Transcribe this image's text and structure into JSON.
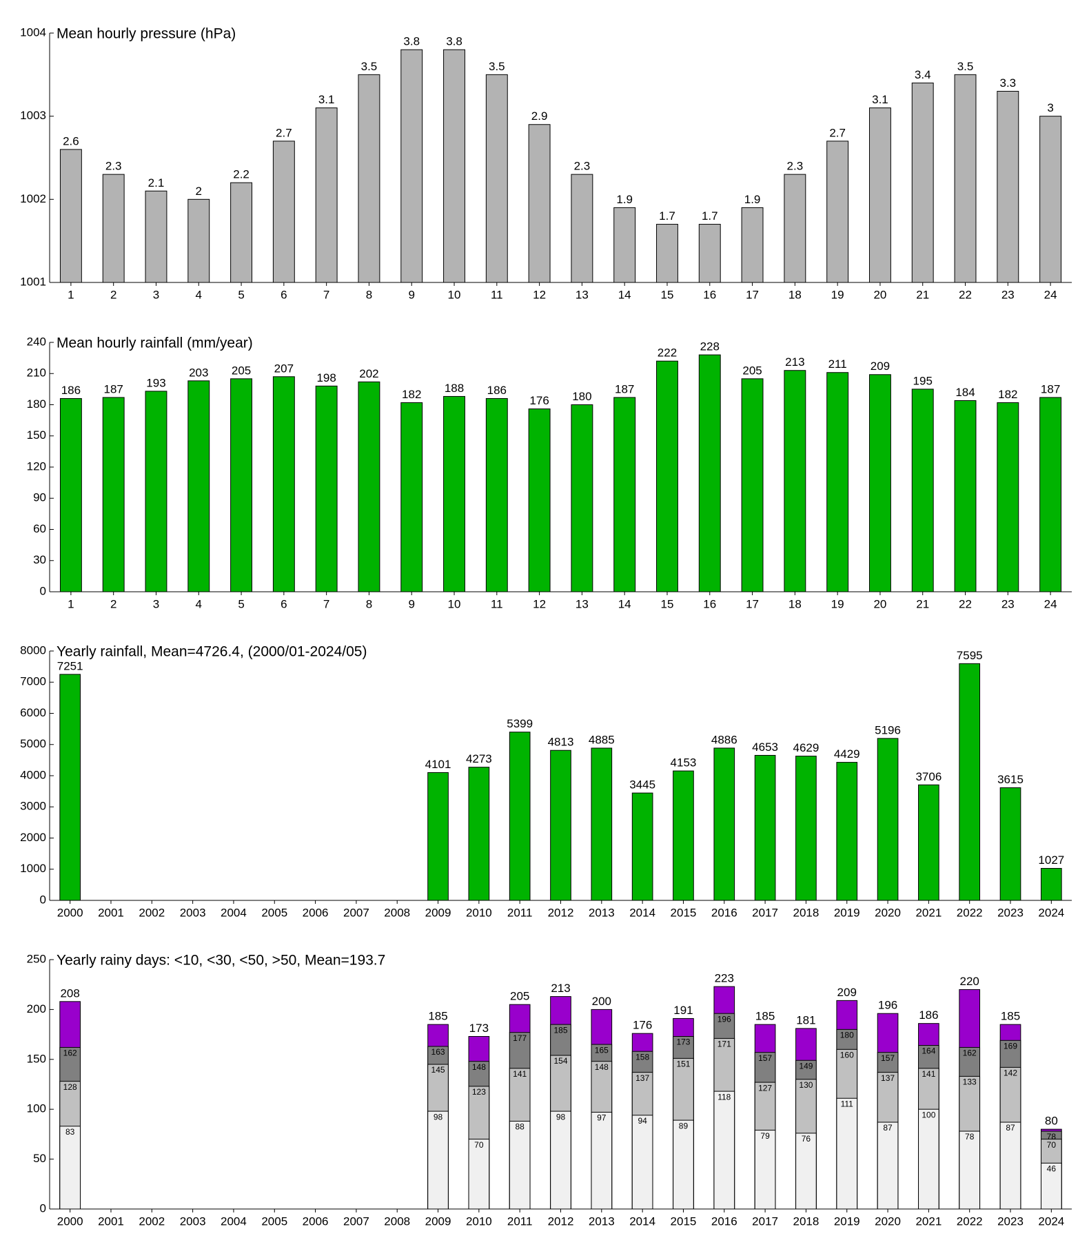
{
  "chart_data": [
    {
      "type": "bar",
      "title": "Mean hourly pressure (hPa)",
      "categories": [
        "1",
        "2",
        "3",
        "4",
        "5",
        "6",
        "7",
        "8",
        "9",
        "10",
        "11",
        "12",
        "13",
        "14",
        "15",
        "16",
        "17",
        "18",
        "19",
        "20",
        "21",
        "22",
        "23",
        "24"
      ],
      "values": [
        1002.6,
        1002.3,
        1002.1,
        1002,
        1002.2,
        1002.7,
        1003.1,
        1003.5,
        1003.8,
        1003.8,
        1003.5,
        1002.9,
        1002.3,
        1001.9,
        1001.7,
        1001.7,
        1001.9,
        1002.3,
        1002.7,
        1003.1,
        1003.4,
        1003.5,
        1003.3,
        1003
      ],
      "value_labels": [
        "2.6",
        "2.3",
        "2.1",
        "2",
        "2.2",
        "2.7",
        "3.1",
        "3.5",
        "3.8",
        "3.8",
        "3.5",
        "2.9",
        "2.3",
        "1.9",
        "1.7",
        "1.7",
        "1.9",
        "2.3",
        "2.7",
        "3.1",
        "3.4",
        "3.5",
        "3.3",
        "3"
      ],
      "color": "#b3b3b3",
      "ylim": [
        1001,
        1004
      ],
      "yticks": [
        1001,
        1002,
        1003,
        1004
      ]
    },
    {
      "type": "bar",
      "title": "Mean hourly rainfall (mm/year)",
      "categories": [
        "1",
        "2",
        "3",
        "4",
        "5",
        "6",
        "7",
        "8",
        "9",
        "10",
        "11",
        "12",
        "13",
        "14",
        "15",
        "16",
        "17",
        "18",
        "19",
        "20",
        "21",
        "22",
        "23",
        "24"
      ],
      "values": [
        186,
        187,
        193,
        203,
        205,
        207,
        198,
        202,
        182,
        188,
        186,
        176,
        180,
        187,
        222,
        228,
        205,
        213,
        211,
        209,
        195,
        184,
        182,
        187
      ],
      "color": "#00b300",
      "ylim": [
        0,
        240
      ],
      "yticks": [
        0,
        30,
        60,
        90,
        120,
        150,
        180,
        210,
        240
      ]
    },
    {
      "type": "bar",
      "title": "Yearly rainfall, Mean=4726.4, (2000/01-2024/05)",
      "categories": [
        "2000",
        "2001",
        "2002",
        "2003",
        "2004",
        "2005",
        "2006",
        "2007",
        "2008",
        "2009",
        "2010",
        "2011",
        "2012",
        "2013",
        "2014",
        "2015",
        "2016",
        "2017",
        "2018",
        "2019",
        "2020",
        "2021",
        "2022",
        "2023",
        "2024"
      ],
      "values": [
        7251,
        null,
        null,
        null,
        null,
        null,
        null,
        null,
        null,
        4101,
        4273,
        5399,
        4813,
        4885,
        3445,
        4153,
        4886,
        4653,
        4629,
        4429,
        5196,
        3706,
        7595,
        3615,
        1027
      ],
      "color": "#00b300",
      "ylim": [
        0,
        8000
      ],
      "yticks": [
        0,
        1000,
        2000,
        3000,
        4000,
        5000,
        6000,
        7000,
        8000
      ]
    },
    {
      "type": "bar",
      "barmode": "overlay",
      "title": "Yearly rainy days: <10, <30, <50, >50, Mean=193.7",
      "categories": [
        "2000",
        "2001",
        "2002",
        "2003",
        "2004",
        "2005",
        "2006",
        "2007",
        "2008",
        "2009",
        "2010",
        "2011",
        "2012",
        "2013",
        "2014",
        "2015",
        "2016",
        "2017",
        "2018",
        "2019",
        "2020",
        "2021",
        "2022",
        "2023",
        "2024"
      ],
      "series": [
        {
          "color": "#f0f0f0",
          "values": [
            83,
            null,
            null,
            null,
            null,
            null,
            null,
            null,
            null,
            98,
            70,
            88,
            98,
            97,
            94,
            89,
            118,
            79,
            76,
            111,
            87,
            100,
            78,
            87,
            46
          ]
        },
        {
          "color": "#c0c0c0",
          "values": [
            128,
            null,
            null,
            null,
            null,
            null,
            null,
            null,
            null,
            145,
            123,
            141,
            154,
            148,
            137,
            151,
            171,
            127,
            130,
            160,
            137,
            141,
            133,
            142,
            70
          ]
        },
        {
          "color": "#808080",
          "values": [
            162,
            null,
            null,
            null,
            null,
            null,
            null,
            null,
            null,
            163,
            148,
            177,
            185,
            165,
            158,
            173,
            196,
            157,
            149,
            180,
            157,
            164,
            162,
            169,
            78
          ]
        },
        {
          "color": "#9900cc",
          "values": [
            208,
            null,
            null,
            null,
            null,
            null,
            null,
            null,
            null,
            185,
            173,
            205,
            213,
            200,
            176,
            191,
            223,
            185,
            181,
            209,
            196,
            186,
            220,
            185,
            80
          ]
        }
      ],
      "ylim": [
        0,
        250
      ],
      "yticks": [
        0,
        50,
        100,
        150,
        200,
        250
      ]
    }
  ]
}
